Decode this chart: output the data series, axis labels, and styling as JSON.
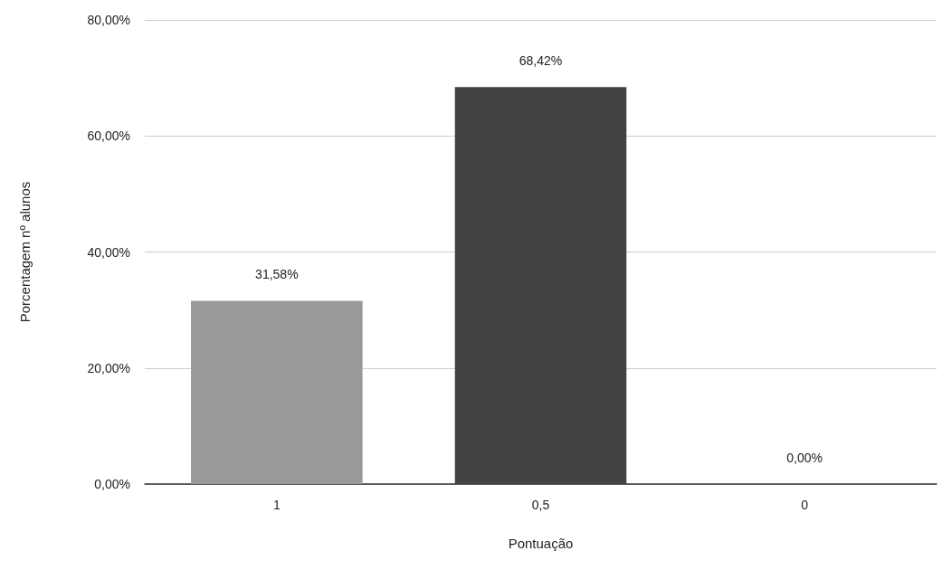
{
  "chart_data": {
    "type": "bar",
    "xlabel": "Pontuação",
    "ylabel": "Porcentagem nº alunos",
    "categories": [
      "1",
      "0,5",
      "0"
    ],
    "values": [
      31.58,
      68.42,
      0
    ],
    "colors": [
      "#999999",
      "#434343",
      "#666666"
    ],
    "value_labels": [
      "31,58%",
      "68,42%",
      "0,00%"
    ],
    "ylim": [
      0,
      80
    ],
    "yticks": [
      {
        "value": 0,
        "label": "0,00%"
      },
      {
        "value": 20,
        "label": "20,00%"
      },
      {
        "value": 40,
        "label": "40,00%"
      },
      {
        "value": 60,
        "label": "60,00%"
      },
      {
        "value": 80,
        "label": "80,00%"
      }
    ],
    "grid": "y"
  }
}
